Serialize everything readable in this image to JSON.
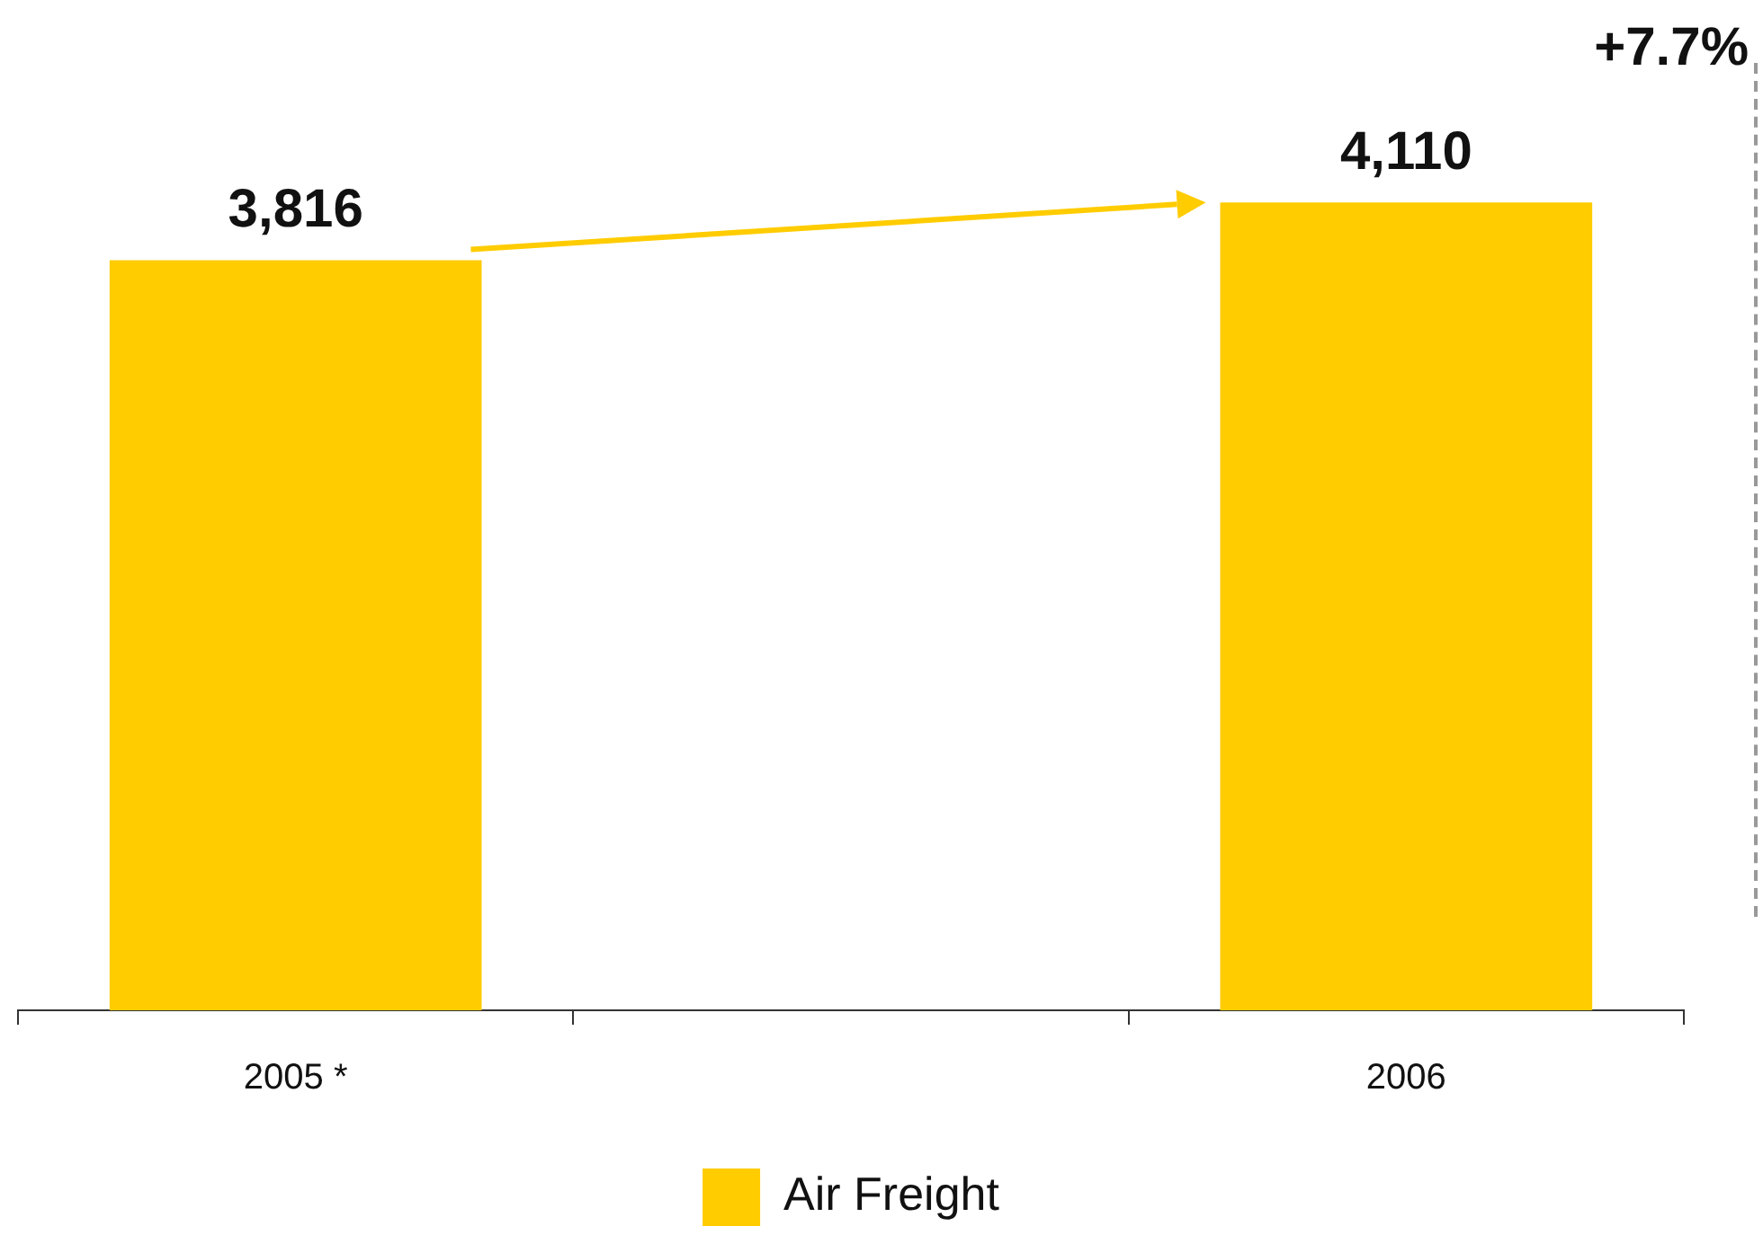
{
  "chart_data": {
    "type": "bar",
    "categories": [
      "2005 *",
      null,
      "2006"
    ],
    "series": [
      {
        "name": "Air Freight",
        "color": "#ffcc00",
        "values": [
          3816,
          null,
          4110
        ],
        "value_labels": [
          "3,816",
          null,
          "4,110"
        ]
      }
    ],
    "annotations": [
      "+7.7%"
    ],
    "legend": "bottom",
    "grid": false
  }
}
